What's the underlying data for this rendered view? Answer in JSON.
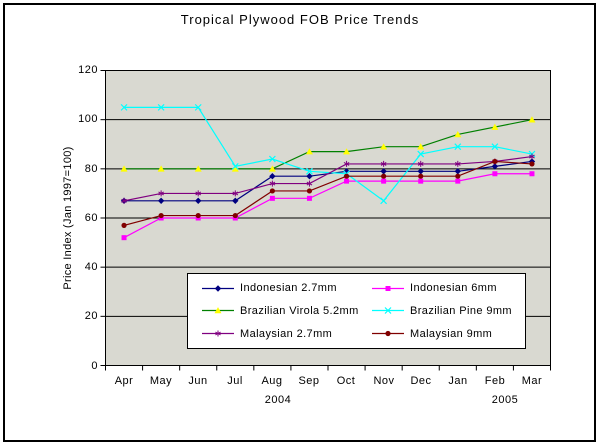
{
  "chart_data": {
    "type": "line",
    "title": "Tropical Plywood FOB Price Trends",
    "ylabel": "Price Index (Jan 1997=100)",
    "ylim": [
      0,
      120
    ],
    "y_ticks": [
      0,
      20,
      40,
      60,
      80,
      100,
      120
    ],
    "categories": [
      "Apr",
      "May",
      "Jun",
      "Jul",
      "Aug",
      "Sep",
      "Oct",
      "Nov",
      "Dec",
      "Jan",
      "Feb",
      "Mar"
    ],
    "year_labels": [
      {
        "text": "2004"
      },
      {
        "text": "2005"
      }
    ],
    "grid": true,
    "gridline_color": "#000000",
    "plot_bg": "#d9d9d1",
    "legend_position": "bottom-center-inside",
    "series": [
      {
        "name": "Indonesian 2.7mm",
        "color": "#000080",
        "marker": "diamond",
        "marker_color": "#000080",
        "values": [
          67,
          67,
          67,
          67,
          77,
          77,
          79,
          79,
          79,
          79,
          81,
          83
        ]
      },
      {
        "name": "Indonesian 6mm",
        "color": "#ff00ff",
        "marker": "square",
        "marker_color": "#ff00ff",
        "values": [
          52,
          60,
          60,
          60,
          68,
          68,
          75,
          75,
          75,
          75,
          78,
          78
        ]
      },
      {
        "name": "Brazilian Virola 5.2mm",
        "color": "#008000",
        "marker": "triangle",
        "marker_color": "#ffff00",
        "values": [
          80,
          80,
          80,
          80,
          80,
          87,
          87,
          89,
          89,
          94,
          97,
          100
        ]
      },
      {
        "name": "Brazilian Pine 9mm",
        "color": "#00ffff",
        "marker": "x",
        "marker_color": "#00ffff",
        "values": [
          105,
          105,
          105,
          81,
          84,
          79,
          78,
          67,
          86,
          89,
          89,
          86
        ]
      },
      {
        "name": "Malaysian 2.7mm",
        "color": "#800080",
        "marker": "star",
        "marker_color": "#800080",
        "values": [
          67,
          70,
          70,
          70,
          74,
          74,
          82,
          82,
          82,
          82,
          83,
          85
        ]
      },
      {
        "name": "Malaysian 9mm",
        "color": "#800000",
        "marker": "circle",
        "marker_color": "#800000",
        "values": [
          57,
          61,
          61,
          61,
          71,
          71,
          77,
          77,
          77,
          77,
          83,
          82
        ]
      }
    ]
  }
}
